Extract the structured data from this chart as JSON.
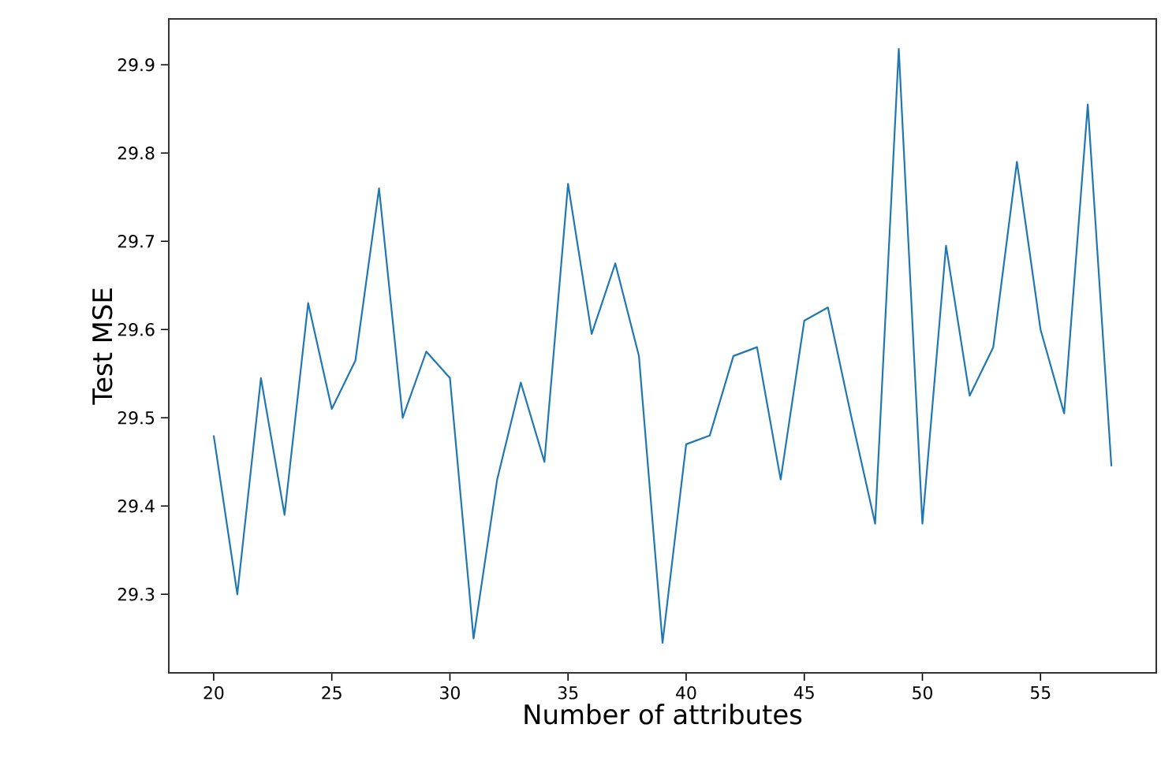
{
  "chart_data": {
    "type": "line",
    "xlabel": "Number of attributes",
    "ylabel": "Test MSE",
    "x": [
      20,
      21,
      22,
      23,
      24,
      25,
      26,
      27,
      28,
      29,
      30,
      31,
      32,
      33,
      34,
      35,
      36,
      37,
      38,
      39,
      40,
      41,
      42,
      43,
      44,
      45,
      46,
      47,
      48,
      49,
      50,
      51,
      52,
      53,
      54,
      55,
      56,
      57,
      58
    ],
    "series": [
      {
        "color": "#1f77b4",
        "values": [
          29.48,
          29.3,
          29.545,
          29.39,
          29.63,
          29.51,
          29.565,
          29.76,
          29.5,
          29.575,
          29.545,
          29.25,
          29.43,
          29.54,
          29.45,
          29.765,
          29.595,
          29.675,
          29.57,
          29.245,
          29.47,
          29.48,
          29.57,
          29.58,
          29.43,
          29.61,
          29.625,
          29.5,
          29.38,
          29.918,
          29.38,
          29.695,
          29.525,
          29.58,
          29.79,
          29.6,
          29.505,
          29.855,
          29.445
        ]
      }
    ],
    "xlim": [
      18.1,
      59.9
    ],
    "ylim": [
      29.211,
      29.952
    ],
    "xticks": [
      20,
      25,
      30,
      35,
      40,
      45,
      50,
      55
    ],
    "yticks": [
      29.3,
      29.4,
      29.5,
      29.6,
      29.7,
      29.8,
      29.9
    ],
    "marker": "none",
    "line_style": "solid"
  }
}
